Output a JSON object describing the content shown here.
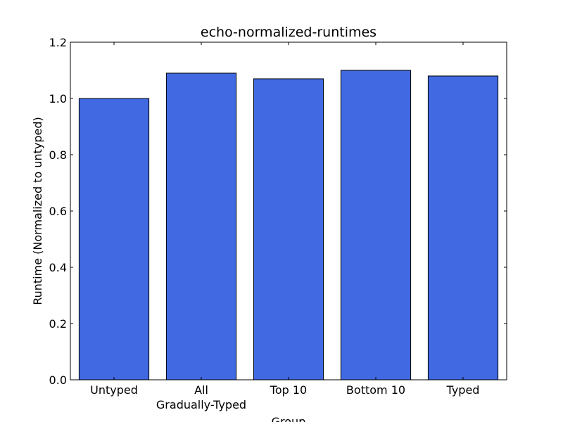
{
  "chart_data": {
    "type": "bar",
    "title": "echo-normalized-runtimes",
    "xlabel": "Group",
    "ylabel": "Runtime (Normalized to untyped)",
    "categories": [
      [
        "Untyped"
      ],
      [
        "All",
        "Gradually-Typed"
      ],
      [
        "Top 10"
      ],
      [
        "Bottom 10"
      ],
      [
        "Typed"
      ]
    ],
    "values": [
      1.0,
      1.09,
      1.07,
      1.1,
      1.08
    ],
    "ylim": [
      0,
      1.2
    ],
    "yticks": [
      "0.0",
      "0.2",
      "0.4",
      "0.6",
      "0.8",
      "1.0",
      "1.2"
    ],
    "grid": false,
    "bar_color": "#4169e1",
    "edge_color": "#000000"
  }
}
